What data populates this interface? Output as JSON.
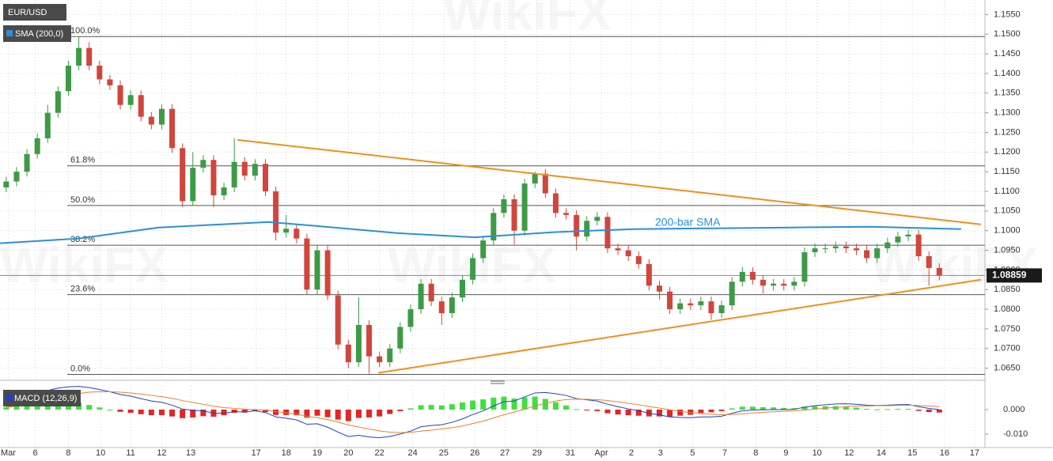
{
  "chart_data": [
    {
      "type": "candlestick",
      "title": "EUR/USD",
      "watermark": "WikiFX",
      "xlim": [
        -0.6,
        94.4
      ],
      "xticks": [
        {
          "value": 0.2,
          "label": "Mar"
        },
        {
          "value": 2.8,
          "label": "6"
        },
        {
          "value": 6,
          "label": "8"
        },
        {
          "value": 9.1,
          "label": "10"
        },
        {
          "value": 12,
          "label": "11"
        },
        {
          "value": 15,
          "label": "12"
        },
        {
          "value": 17.8,
          "label": "13"
        },
        {
          "value": 24.1,
          "label": "17"
        },
        {
          "value": 27,
          "label": "18"
        },
        {
          "value": 30,
          "label": "19"
        },
        {
          "value": 33,
          "label": "20"
        },
        {
          "value": 36,
          "label": "22"
        },
        {
          "value": 39.2,
          "label": "24"
        },
        {
          "value": 42.2,
          "label": "25"
        },
        {
          "value": 45.2,
          "label": "26"
        },
        {
          "value": 48.1,
          "label": "27"
        },
        {
          "value": 51.2,
          "label": "29"
        },
        {
          "value": 54.4,
          "label": "31"
        },
        {
          "value": 57.4,
          "label": "Apr"
        },
        {
          "value": 60.3,
          "label": "2"
        },
        {
          "value": 63.1,
          "label": "3"
        },
        {
          "value": 66.2,
          "label": "5"
        },
        {
          "value": 69.3,
          "label": "7"
        },
        {
          "value": 72.3,
          "label": "8"
        },
        {
          "value": 75.2,
          "label": "9"
        },
        {
          "value": 78.2,
          "label": "10"
        },
        {
          "value": 81.3,
          "label": "12"
        },
        {
          "value": 84.4,
          "label": "14"
        },
        {
          "value": 87.4,
          "label": "15"
        },
        {
          "value": 90.5,
          "label": "16"
        },
        {
          "value": 93.4,
          "label": "17"
        }
      ],
      "ylim": [
        1.0625,
        1.1577
      ],
      "yticks": [
        {
          "value": 1.155,
          "label": "1.1550"
        },
        {
          "value": 1.15,
          "label": "1.1500"
        },
        {
          "value": 1.145,
          "label": "1.1450"
        },
        {
          "value": 1.14,
          "label": "1.1400"
        },
        {
          "value": 1.135,
          "label": "1.1350"
        },
        {
          "value": 1.13,
          "label": "1.1300"
        },
        {
          "value": 1.125,
          "label": "1.1250"
        },
        {
          "value": 1.12,
          "label": "1.1200"
        },
        {
          "value": 1.115,
          "label": "1.1150"
        },
        {
          "value": 1.11,
          "label": "1.1100"
        },
        {
          "value": 1.105,
          "label": "1.1050"
        },
        {
          "value": 1.1,
          "label": "1.1000"
        },
        {
          "value": 1.095,
          "label": "1.0950"
        },
        {
          "value": 1.09,
          "label": "1.0900"
        },
        {
          "value": 1.085,
          "label": "1.0850"
        },
        {
          "value": 1.08,
          "label": "1.0800"
        },
        {
          "value": 1.075,
          "label": "1.0750"
        },
        {
          "value": 1.07,
          "label": "1.0700"
        },
        {
          "value": 1.065,
          "label": "1.0650"
        }
      ],
      "grid": true,
      "up_color": "#3d9b45",
      "down_color": "#d2453c",
      "open": [
        1.111,
        1.1125,
        1.115,
        1.1195,
        1.1235,
        1.13,
        1.1355,
        1.142,
        1.1465,
        1.142,
        1.1385,
        1.137,
        1.132,
        1.1345,
        1.129,
        1.127,
        1.131,
        1.121,
        1.1075,
        1.116,
        1.118,
        1.109,
        1.111,
        1.1175,
        1.114,
        1.117,
        1.11,
        1.0995,
        1.1005,
        1.098,
        1.085,
        1.095,
        1.0835,
        1.071,
        1.0665,
        1.076,
        1.068,
        1.0665,
        1.07,
        1.0755,
        1.08,
        1.0865,
        1.082,
        1.079,
        1.083,
        1.0875,
        1.093,
        1.0975,
        1.1045,
        1.108,
        1.1,
        1.112,
        1.1145,
        1.1095,
        1.1045,
        1.104,
        1.0985,
        1.1025,
        1.1035,
        1.0955,
        1.095,
        1.0935,
        1.0915,
        1.086,
        1.0845,
        1.08,
        1.0815,
        1.081,
        1.082,
        1.079,
        1.081,
        1.087,
        1.0895,
        1.0875,
        1.086,
        1.0865,
        1.086,
        1.087,
        1.0945,
        1.0955,
        1.0955,
        1.096,
        1.0955,
        1.095,
        1.093,
        1.0955,
        1.097,
        1.0985,
        1.099,
        1.0935,
        1.0905
      ],
      "high": [
        1.1137,
        1.1162,
        1.1207,
        1.1247,
        1.132,
        1.1367,
        1.1432,
        1.1495,
        1.148,
        1.1432,
        1.1397,
        1.1382,
        1.1357,
        1.1357,
        1.1302,
        1.1322,
        1.1322,
        1.1222,
        1.12,
        1.1192,
        1.1192,
        1.1122,
        1.1235,
        1.1187,
        1.1182,
        1.1182,
        1.1112,
        1.104,
        1.1017,
        1.0992,
        1.0962,
        1.0962,
        1.0847,
        1.0722,
        1.083,
        1.0772,
        1.0692,
        1.0712,
        1.0767,
        1.0812,
        1.0877,
        1.0877,
        1.0832,
        1.0842,
        1.0887,
        1.0942,
        1.0987,
        1.1057,
        1.1092,
        1.1092,
        1.1132,
        1.115,
        1.1157,
        1.1107,
        1.1057,
        1.1052,
        1.1037,
        1.1047,
        1.1047,
        1.0967,
        1.0962,
        1.0947,
        1.0927,
        1.0872,
        1.0857,
        1.0827,
        1.0827,
        1.0832,
        1.0832,
        1.0822,
        1.0882,
        1.0907,
        1.0907,
        1.0887,
        1.0877,
        1.0877,
        1.0882,
        1.0957,
        1.0967,
        1.0967,
        1.0972,
        1.0972,
        1.0967,
        1.0962,
        1.0967,
        1.0982,
        1.0997,
        1.1002,
        1.1002,
        1.0947,
        1.0917
      ],
      "low": [
        1.1098,
        1.1113,
        1.1138,
        1.1183,
        1.1223,
        1.1288,
        1.1343,
        1.1408,
        1.1408,
        1.1373,
        1.1358,
        1.1308,
        1.1308,
        1.1278,
        1.1258,
        1.1258,
        1.1198,
        1.106,
        1.1063,
        1.1148,
        1.106,
        1.1078,
        1.1098,
        1.1128,
        1.1128,
        1.1088,
        1.0975,
        1.0983,
        1.0968,
        1.0838,
        1.0838,
        1.0823,
        1.0698,
        1.065,
        1.0653,
        1.0636,
        1.0653,
        1.0653,
        1.0688,
        1.0743,
        1.0788,
        1.0808,
        1.076,
        1.0778,
        1.0818,
        1.0863,
        1.0918,
        1.0963,
        1.1033,
        1.0965,
        1.0988,
        1.1108,
        1.1083,
        1.1033,
        1.1028,
        1.095,
        1.0973,
        1.1013,
        1.0943,
        1.0938,
        1.0923,
        1.0903,
        1.0848,
        1.0825,
        1.0788,
        1.0788,
        1.0798,
        1.0798,
        1.0773,
        1.0778,
        1.0798,
        1.0858,
        1.0863,
        1.084,
        1.0848,
        1.0848,
        1.0848,
        1.0858,
        1.0933,
        1.0943,
        1.0943,
        1.0943,
        1.0938,
        1.0918,
        1.0918,
        1.0943,
        1.0958,
        1.0973,
        1.0923,
        1.086,
        1.0874
      ],
      "close": [
        1.1125,
        1.115,
        1.1195,
        1.1235,
        1.13,
        1.1355,
        1.142,
        1.1465,
        1.142,
        1.1385,
        1.137,
        1.132,
        1.1345,
        1.129,
        1.127,
        1.131,
        1.121,
        1.1075,
        1.116,
        1.118,
        1.109,
        1.111,
        1.1175,
        1.114,
        1.117,
        1.11,
        1.0995,
        1.1005,
        1.098,
        1.085,
        1.095,
        1.0835,
        1.071,
        1.0665,
        1.076,
        1.068,
        1.0665,
        1.07,
        1.0755,
        1.08,
        1.0865,
        1.082,
        1.079,
        1.083,
        1.0875,
        1.093,
        1.0975,
        1.1045,
        1.108,
        1.1,
        1.112,
        1.1145,
        1.1095,
        1.1045,
        1.104,
        1.0985,
        1.1025,
        1.1035,
        1.0955,
        1.095,
        1.0935,
        1.0915,
        1.086,
        1.0845,
        1.08,
        1.0815,
        1.081,
        1.082,
        1.079,
        1.081,
        1.087,
        1.0895,
        1.0875,
        1.086,
        1.0865,
        1.086,
        1.087,
        1.0945,
        1.0955,
        1.0955,
        1.096,
        1.0955,
        1.095,
        1.093,
        1.0955,
        1.097,
        1.0985,
        1.099,
        1.0935,
        1.0905,
        1.08859
      ],
      "last_price": 1.08859,
      "sma": {
        "name": "SMA (200,0)",
        "label": "200-bar SMA",
        "color": "#2a8fdc",
        "x": [
          -0.6,
          7,
          14.7,
          22.3,
          25.3,
          29.9,
          37.6,
          45.2,
          52.8,
          60.5,
          68.1,
          75.7,
          83.4,
          92.1
        ],
        "values": [
          1.0968,
          1.098,
          1.1008,
          1.1018,
          1.1022,
          1.1012,
          1.0994,
          1.0983,
          1.0996,
          1.1004,
          1.1006,
          1.1008,
          1.101,
          1.1004
        ]
      },
      "trendlines": [
        {
          "color": "#f0901a",
          "x": [
            22.3,
            94.0
          ],
          "values": [
            1.1231,
            1.1016
          ]
        },
        {
          "color": "#f0901a",
          "x": [
            35.9,
            94.0
          ],
          "values": [
            1.0638,
            1.0875
          ]
        }
      ],
      "fib": [
        {
          "label": "100.0%",
          "value": 1.1494
        },
        {
          "label": "61.8%",
          "value": 1.1165
        },
        {
          "label": "50.0%",
          "value": 1.1064
        },
        {
          "label": "38.2%",
          "value": 1.0963
        },
        {
          "label": "23.6%",
          "value": 1.0837
        },
        {
          "label": "0.0%",
          "value": 1.0634
        }
      ]
    },
    {
      "type": "macd",
      "title": "MACD (12,26,9)",
      "ylim": [
        -0.0152,
        0.0097
      ],
      "yticks": [
        {
          "value": 0,
          "label": "0.000"
        },
        {
          "value": -0.01,
          "label": "-0.010"
        }
      ],
      "series": [
        {
          "color": "#1f3fd0",
          "values": [
            0.002,
            0.0035,
            0.005,
            0.0065,
            0.0078,
            0.0088,
            0.0093,
            0.0095,
            0.009,
            0.0082,
            0.0073,
            0.0062,
            0.0055,
            0.0045,
            0.0035,
            0.003,
            0.0018,
            0.0002,
            -0.0003,
            -0.0005,
            -0.0015,
            -0.0015,
            -0.0008,
            -0.001,
            -0.0005,
            -0.0012,
            -0.003,
            -0.0035,
            -0.0042,
            -0.006,
            -0.0058,
            -0.0072,
            -0.0092,
            -0.011,
            -0.0105,
            -0.0112,
            -0.0115,
            -0.011,
            -0.01,
            -0.0088,
            -0.007,
            -0.0065,
            -0.0062,
            -0.0052,
            -0.0038,
            -0.002,
            -0.0005,
            0.0015,
            0.0032,
            0.0035,
            0.0052,
            0.0068,
            0.007,
            0.0065,
            0.0058,
            0.0045,
            0.004,
            0.0035,
            0.0022,
            0.0012,
            0.0003,
            -0.0005,
            -0.0015,
            -0.0022,
            -0.003,
            -0.0032,
            -0.0033,
            -0.003,
            -0.003,
            -0.0027,
            -0.0015,
            -0.0005,
            -0.0002,
            -0.0001,
            0.0,
            0.0,
            0.0001,
            0.001,
            0.0016,
            0.002,
            0.0023,
            0.0024,
            0.0022,
            0.0018,
            0.0017,
            0.0018,
            0.002,
            0.0021,
            0.0012,
            0.0005,
            0.0
          ]
        },
        {
          "color": "#f0802a",
          "values": [
            0.001,
            0.0014,
            0.0021,
            0.003,
            0.0039,
            0.0049,
            0.0058,
            0.0066,
            0.0071,
            0.0073,
            0.0073,
            0.0071,
            0.0068,
            0.0064,
            0.0058,
            0.0053,
            0.0046,
            0.0037,
            0.0029,
            0.0022,
            0.0014,
            0.0008,
            0.0005,
            0.0002,
            0.0,
            -0.0002,
            -0.0008,
            -0.0013,
            -0.0019,
            -0.0027,
            -0.0033,
            -0.0041,
            -0.0051,
            -0.0063,
            -0.0071,
            -0.008,
            -0.0087,
            -0.0092,
            -0.0094,
            -0.0093,
            -0.0088,
            -0.0084,
            -0.0079,
            -0.0074,
            -0.0067,
            -0.0057,
            -0.0047,
            -0.0034,
            -0.0021,
            -0.001,
            0.0002,
            0.0015,
            0.0026,
            0.0035,
            0.0041,
            0.0043,
            0.0042,
            0.0041,
            0.0037,
            0.0032,
            0.0026,
            0.002,
            0.0013,
            0.0006,
            -0.0001,
            -0.0007,
            -0.0012,
            -0.0016,
            -0.0019,
            -0.0021,
            -0.002,
            -0.0017,
            -0.0014,
            -0.0011,
            -0.0009,
            -0.0007,
            -0.0005,
            -0.0002,
            0.0002,
            0.0006,
            0.0009,
            0.0012,
            0.0014,
            0.0015,
            0.0016,
            0.0016,
            0.0017,
            0.0018,
            0.0017,
            0.0015,
            0.0012
          ]
        }
      ],
      "histogram": {
        "up_color": "#3fe03f",
        "down_color": "#e52424",
        "values": [
          0.001,
          0.0021,
          0.0029,
          0.0035,
          0.0039,
          0.0039,
          0.0035,
          0.0029,
          0.0019,
          0.0009,
          0.0,
          -0.0009,
          -0.0013,
          -0.0019,
          -0.0023,
          -0.0023,
          -0.0028,
          -0.0035,
          -0.0032,
          -0.0027,
          -0.0029,
          -0.0023,
          -0.0013,
          -0.0012,
          -0.0005,
          -0.001,
          -0.0022,
          -0.0022,
          -0.0023,
          -0.0033,
          -0.0025,
          -0.0031,
          -0.0041,
          -0.0047,
          -0.0034,
          -0.0032,
          -0.0028,
          -0.0018,
          -0.0006,
          0.0005,
          0.0018,
          0.0019,
          0.0017,
          0.0022,
          0.0029,
          0.0037,
          0.0042,
          0.0049,
          0.0053,
          0.0045,
          0.005,
          0.0053,
          0.0044,
          0.003,
          0.0017,
          0.0002,
          -0.0002,
          -0.0006,
          -0.0015,
          -0.002,
          -0.0023,
          -0.0025,
          -0.0028,
          -0.0028,
          -0.0029,
          -0.0025,
          -0.0021,
          -0.0014,
          -0.0011,
          -0.0006,
          0.0005,
          0.0012,
          0.0012,
          0.001,
          0.0009,
          0.0007,
          0.0006,
          0.0012,
          0.0014,
          0.0014,
          0.0014,
          0.0012,
          0.0008,
          0.0003,
          0.0001,
          0.0002,
          0.0003,
          0.0003,
          -0.0005,
          -0.001,
          -0.0012
        ]
      }
    }
  ]
}
